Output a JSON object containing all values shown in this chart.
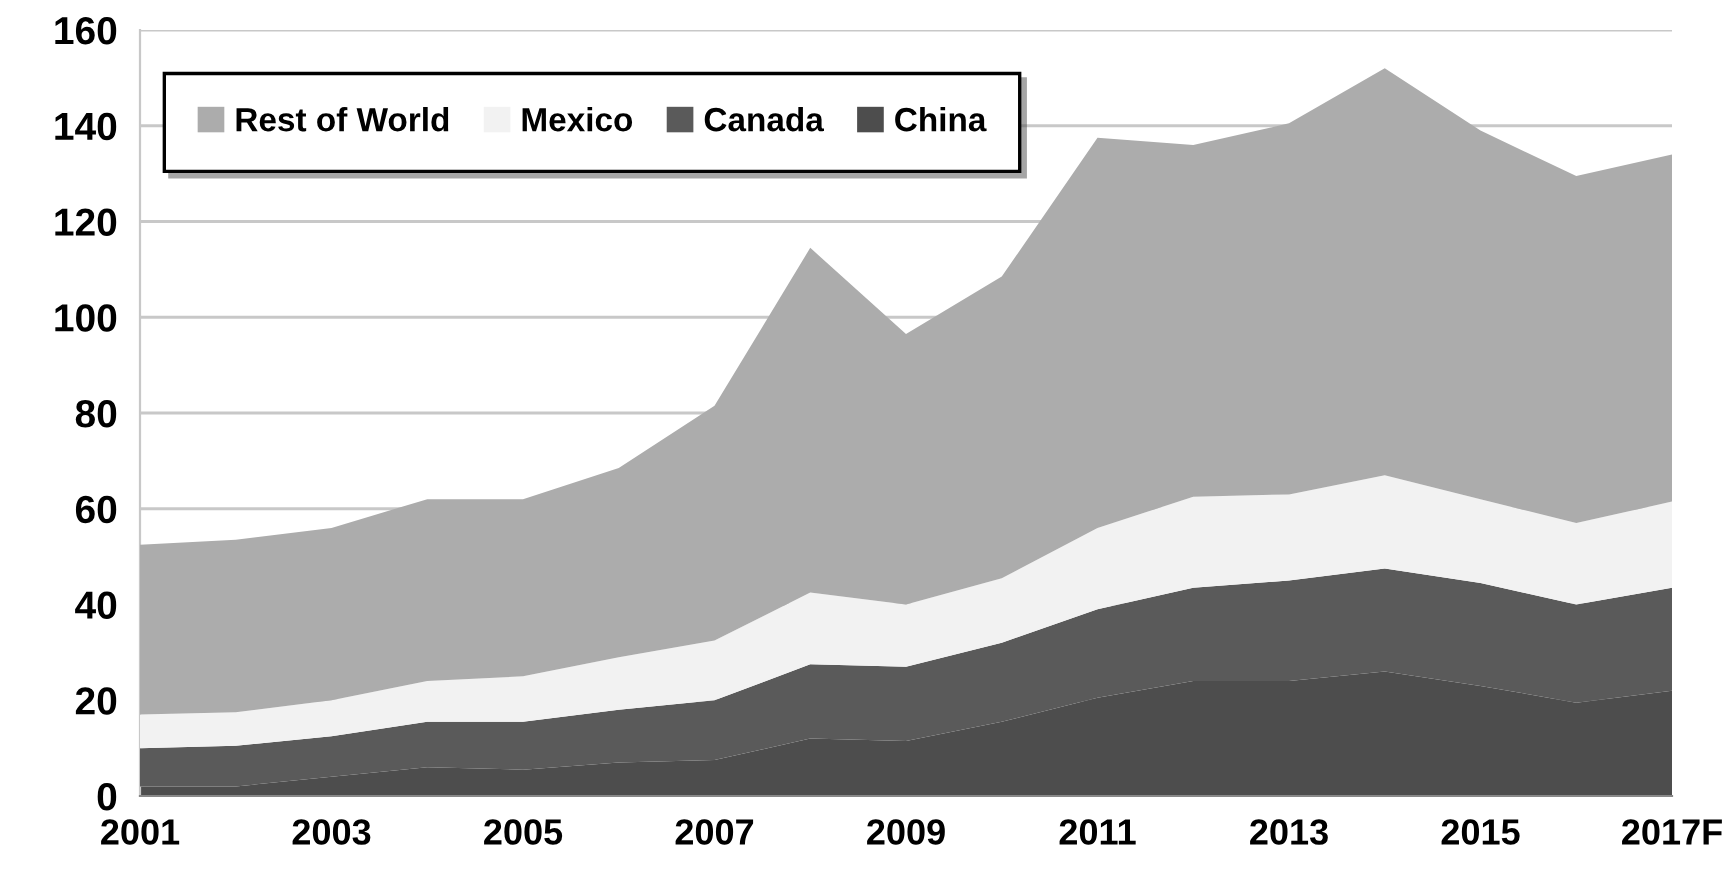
{
  "chart_data": {
    "type": "area",
    "stacked": true,
    "categories": [
      "2001",
      null,
      "2003",
      null,
      "2005",
      null,
      "2007",
      null,
      "2009",
      null,
      "2011",
      null,
      "2013",
      null,
      "2015",
      null,
      "2017F"
    ],
    "series": [
      {
        "name": "China",
        "color": "#4d4d4d",
        "values": [
          2,
          2,
          4,
          6,
          5.5,
          7,
          7.5,
          12,
          11.5,
          15.5,
          20.5,
          24,
          24,
          26,
          23,
          19.5,
          22
        ]
      },
      {
        "name": "Canada",
        "color": "#5a5a5a",
        "values": [
          8,
          8.5,
          8.5,
          9.5,
          10,
          11,
          12.5,
          15.5,
          15.5,
          16.5,
          18.5,
          19.5,
          21,
          21.5,
          21.5,
          20.5,
          21.5
        ]
      },
      {
        "name": "Mexico",
        "color": "#f2f2f2",
        "values": [
          7,
          7,
          7.5,
          8.5,
          9.5,
          11,
          12.5,
          15,
          13,
          13.5,
          17,
          19,
          18,
          19.5,
          17.5,
          17,
          18
        ]
      },
      {
        "name": "Rest of World",
        "color": "#acacac",
        "values": [
          35.5,
          36,
          36,
          38,
          37,
          39.5,
          49,
          72,
          56.5,
          63,
          81.5,
          73.5,
          77.5,
          85,
          77,
          72.5,
          72.5
        ]
      }
    ],
    "ylim": [
      0,
      160
    ],
    "yticks": [
      0,
      20,
      40,
      60,
      80,
      100,
      120,
      140,
      160
    ],
    "grid": "y",
    "legend": "top left"
  }
}
